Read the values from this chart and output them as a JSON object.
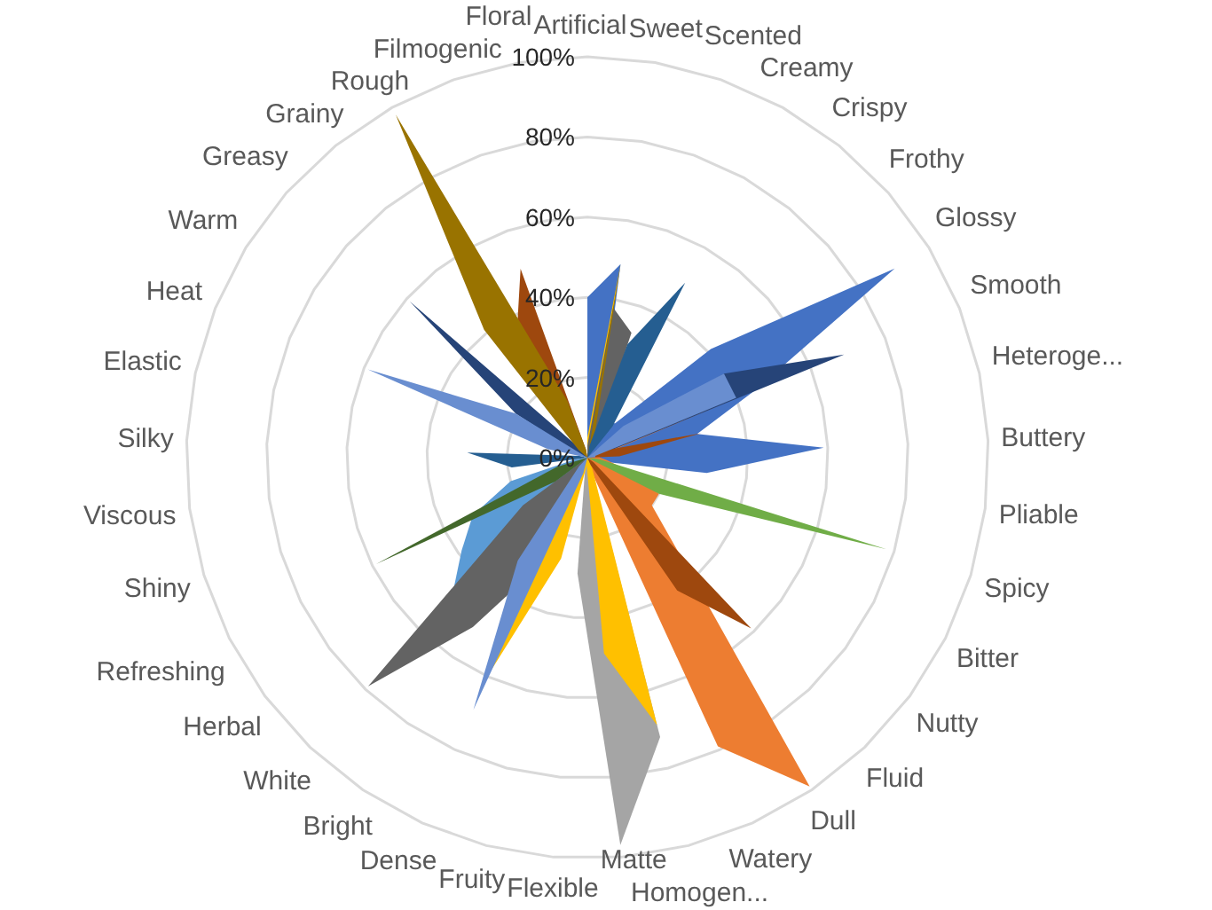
{
  "chart_data": {
    "type": "radar",
    "categories": [
      "Artificial",
      "Sweet",
      "Scented",
      "Creamy",
      "Crispy",
      "Frothy",
      "Glossy",
      "Smooth",
      "Heteroge...",
      "Buttery",
      "Pliable",
      "Spicy",
      "Bitter",
      "Nutty",
      "Fluid",
      "Dull",
      "Watery",
      "Homogen...",
      "Matte",
      "Flexible",
      "Fruity",
      "Dense",
      "Bright",
      "White",
      "Herbal",
      "Refreshing",
      "Shiny",
      "Viscous",
      "Silky",
      "Elastic",
      "Heat",
      "Warm",
      "Greasy",
      "Grainy",
      "Rough",
      "Filmogenic",
      "Floral"
    ],
    "series": [
      {
        "color": "#4472c4",
        "values": [
          40,
          49,
          10,
          10,
          11,
          41,
          90,
          45,
          28,
          59,
          30,
          3,
          0,
          0,
          0,
          0,
          0,
          0,
          0,
          0,
          0,
          0,
          0,
          0,
          0,
          0,
          0,
          0,
          0,
          0,
          0,
          0,
          0,
          0,
          0,
          0,
          0
        ]
      },
      {
        "color": "#ed7d31",
        "values": [
          0,
          0,
          0,
          0,
          0,
          0,
          0,
          47,
          4,
          3,
          5,
          10,
          20,
          20,
          33,
          99,
          79,
          3,
          0,
          0,
          0,
          0,
          0,
          0,
          0,
          0,
          0,
          0,
          0,
          0,
          0,
          0,
          0,
          0,
          0,
          0,
          0
        ]
      },
      {
        "color": "#a5a5a5",
        "values": [
          0,
          0,
          0,
          0,
          0,
          0,
          0,
          0,
          0,
          0,
          0,
          0,
          0,
          0,
          0,
          0,
          2,
          72,
          97,
          29,
          2,
          0,
          0,
          0,
          0,
          0,
          0,
          0,
          0,
          0,
          0,
          0,
          0,
          0,
          0,
          0,
          0
        ]
      },
      {
        "color": "#ffc000",
        "values": [
          5,
          49,
          3,
          0,
          0,
          0,
          0,
          0,
          0,
          0,
          0,
          0,
          0,
          0,
          0,
          0,
          3,
          69,
          49,
          2,
          26,
          58,
          10,
          0,
          0,
          0,
          0,
          0,
          0,
          0,
          0,
          0,
          0,
          0,
          0,
          0,
          0
        ]
      },
      {
        "color": "#5b9bd5",
        "values": [
          0,
          0,
          0,
          0,
          0,
          0,
          0,
          0,
          0,
          0,
          0,
          0,
          0,
          0,
          0,
          0,
          0,
          0,
          0,
          0,
          0,
          0,
          30,
          49,
          39,
          32,
          20,
          3,
          0,
          0,
          0,
          0,
          0,
          0,
          0,
          0,
          0
        ]
      },
      {
        "color": "#70ad47",
        "values": [
          0,
          0,
          0,
          0,
          0,
          0,
          0,
          0,
          0,
          0,
          3,
          78,
          20,
          0,
          0,
          0,
          0,
          0,
          0,
          0,
          0,
          0,
          0,
          0,
          0,
          0,
          0,
          0,
          0,
          0,
          0,
          0,
          0,
          0,
          0,
          0,
          0
        ]
      },
      {
        "color": "#264478",
        "values": [
          0,
          0,
          0,
          0,
          0,
          3,
          40,
          69,
          3,
          0,
          0,
          0,
          0,
          0,
          0,
          0,
          0,
          0,
          0,
          0,
          0,
          0,
          0,
          0,
          0,
          0,
          0,
          0,
          0,
          0,
          3,
          21,
          59,
          3,
          0,
          0,
          0
        ]
      },
      {
        "color": "#9e480e",
        "values": [
          0,
          0,
          0,
          0,
          0,
          0,
          0,
          5,
          29,
          8,
          0,
          0,
          0,
          2,
          59,
          40,
          2,
          0,
          0,
          0,
          0,
          0,
          0,
          0,
          0,
          0,
          0,
          0,
          0,
          0,
          0,
          0,
          0,
          3,
          36,
          50,
          2
        ]
      },
      {
        "color": "#636363",
        "values": [
          3,
          38,
          33,
          3,
          0,
          0,
          0,
          0,
          0,
          0,
          0,
          0,
          0,
          0,
          0,
          0,
          0,
          0,
          0,
          0,
          0,
          30,
          51,
          79,
          20,
          0,
          0,
          0,
          0,
          0,
          0,
          0,
          0,
          0,
          0,
          0,
          0
        ]
      },
      {
        "color": "#997300",
        "values": [
          0,
          49,
          5,
          0,
          0,
          0,
          0,
          0,
          0,
          0,
          0,
          0,
          0,
          0,
          0,
          0,
          0,
          0,
          0,
          0,
          0,
          0,
          0,
          0,
          0,
          0,
          0,
          0,
          0,
          0,
          0,
          0,
          3,
          41,
          98,
          15,
          2
        ]
      },
      {
        "color": "#255e91",
        "values": [
          0,
          3,
          30,
          50,
          10,
          0,
          0,
          0,
          0,
          0,
          0,
          0,
          0,
          0,
          0,
          0,
          0,
          0,
          0,
          0,
          0,
          0,
          0,
          0,
          0,
          0,
          0,
          19,
          30,
          2,
          0,
          0,
          0,
          0,
          0,
          0,
          0
        ]
      },
      {
        "color": "#43682b",
        "values": [
          0,
          0,
          0,
          0,
          0,
          0,
          0,
          0,
          0,
          0,
          0,
          0,
          0,
          0,
          0,
          0,
          0,
          0,
          0,
          0,
          0,
          0,
          0,
          0,
          10,
          59,
          8,
          0,
          0,
          0,
          0,
          0,
          0,
          0,
          0,
          0,
          0
        ]
      },
      {
        "color": "#698ed0",
        "values": [
          0,
          0,
          0,
          0,
          0,
          12,
          40,
          40,
          2,
          2,
          0,
          0,
          0,
          0,
          0,
          0,
          0,
          0,
          0,
          0,
          4,
          69,
          31,
          3,
          0,
          0,
          0,
          0,
          0,
          10,
          59,
          21,
          0,
          0,
          0,
          0,
          0
        ]
      }
    ],
    "ylim": [
      0,
      100
    ],
    "yticks": [
      {
        "value": 0,
        "label": "0%"
      },
      {
        "value": 20,
        "label": "20%"
      },
      {
        "value": 40,
        "label": "40%"
      },
      {
        "value": 60,
        "label": "60%"
      },
      {
        "value": 80,
        "label": "80%"
      },
      {
        "value": 100,
        "label": "100%"
      }
    ],
    "grid": true
  }
}
